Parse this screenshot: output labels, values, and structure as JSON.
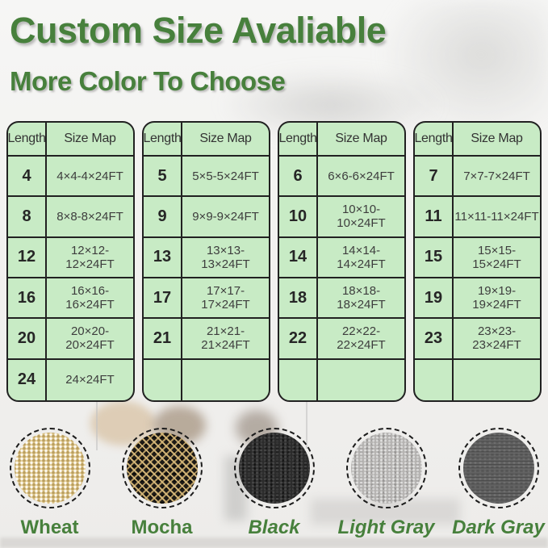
{
  "title": "Custom Size Avaliable",
  "subtitle": "More Color To Choose",
  "size_tables": [
    {
      "headers": [
        "Length",
        "Size Map"
      ],
      "rows": [
        [
          "4",
          "4×4-4×24FT"
        ],
        [
          "8",
          "8×8-8×24FT"
        ],
        [
          "12",
          "12×12-12×24FT"
        ],
        [
          "16",
          "16×16-16×24FT"
        ],
        [
          "20",
          "20×20-20×24FT"
        ],
        [
          "24",
          "24×24FT"
        ]
      ]
    },
    {
      "headers": [
        "Length",
        "Size Map"
      ],
      "rows": [
        [
          "5",
          "5×5-5×24FT"
        ],
        [
          "9",
          "9×9-9×24FT"
        ],
        [
          "13",
          "13×13-13×24FT"
        ],
        [
          "17",
          "17×17-17×24FT"
        ],
        [
          "21",
          "21×21-21×24FT"
        ],
        [
          "",
          ""
        ]
      ]
    },
    {
      "headers": [
        "Length",
        "Size Map"
      ],
      "rows": [
        [
          "6",
          "6×6-6×24FT"
        ],
        [
          "10",
          "10×10-10×24FT"
        ],
        [
          "14",
          "14×14-14×24FT"
        ],
        [
          "18",
          "18×18-18×24FT"
        ],
        [
          "22",
          "22×22-22×24FT"
        ],
        [
          "",
          ""
        ]
      ]
    },
    {
      "headers": [
        "Length",
        "Size Map"
      ],
      "rows": [
        [
          "7",
          "7×7-7×24FT"
        ],
        [
          "11",
          "11×11-11×24FT"
        ],
        [
          "15",
          "15×15-15×24FT"
        ],
        [
          "19",
          "19×19-19×24FT"
        ],
        [
          "23",
          "23×23-23×24FT"
        ],
        [
          "",
          ""
        ]
      ]
    }
  ],
  "color_swatches": [
    {
      "label": "Wheat",
      "texture": "wheat",
      "base_color": "#e2cb90",
      "italic": false
    },
    {
      "label": "Mocha",
      "texture": "mocha",
      "base_color": "#1d1a16",
      "italic": false
    },
    {
      "label": "Black",
      "texture": "black",
      "base_color": "#2b2b2b",
      "italic": true
    },
    {
      "label": "Light Gray",
      "texture": "light-gray",
      "base_color": "#b5b3b1",
      "italic": true
    },
    {
      "label": "Dark Gray",
      "texture": "dark-gray",
      "base_color": "#5f5f5f",
      "italic": true
    }
  ],
  "colors": {
    "accent_green": "#47803c",
    "table_bg": "#c8ebc5",
    "table_border": "#212121",
    "text_dark": "#303030"
  }
}
